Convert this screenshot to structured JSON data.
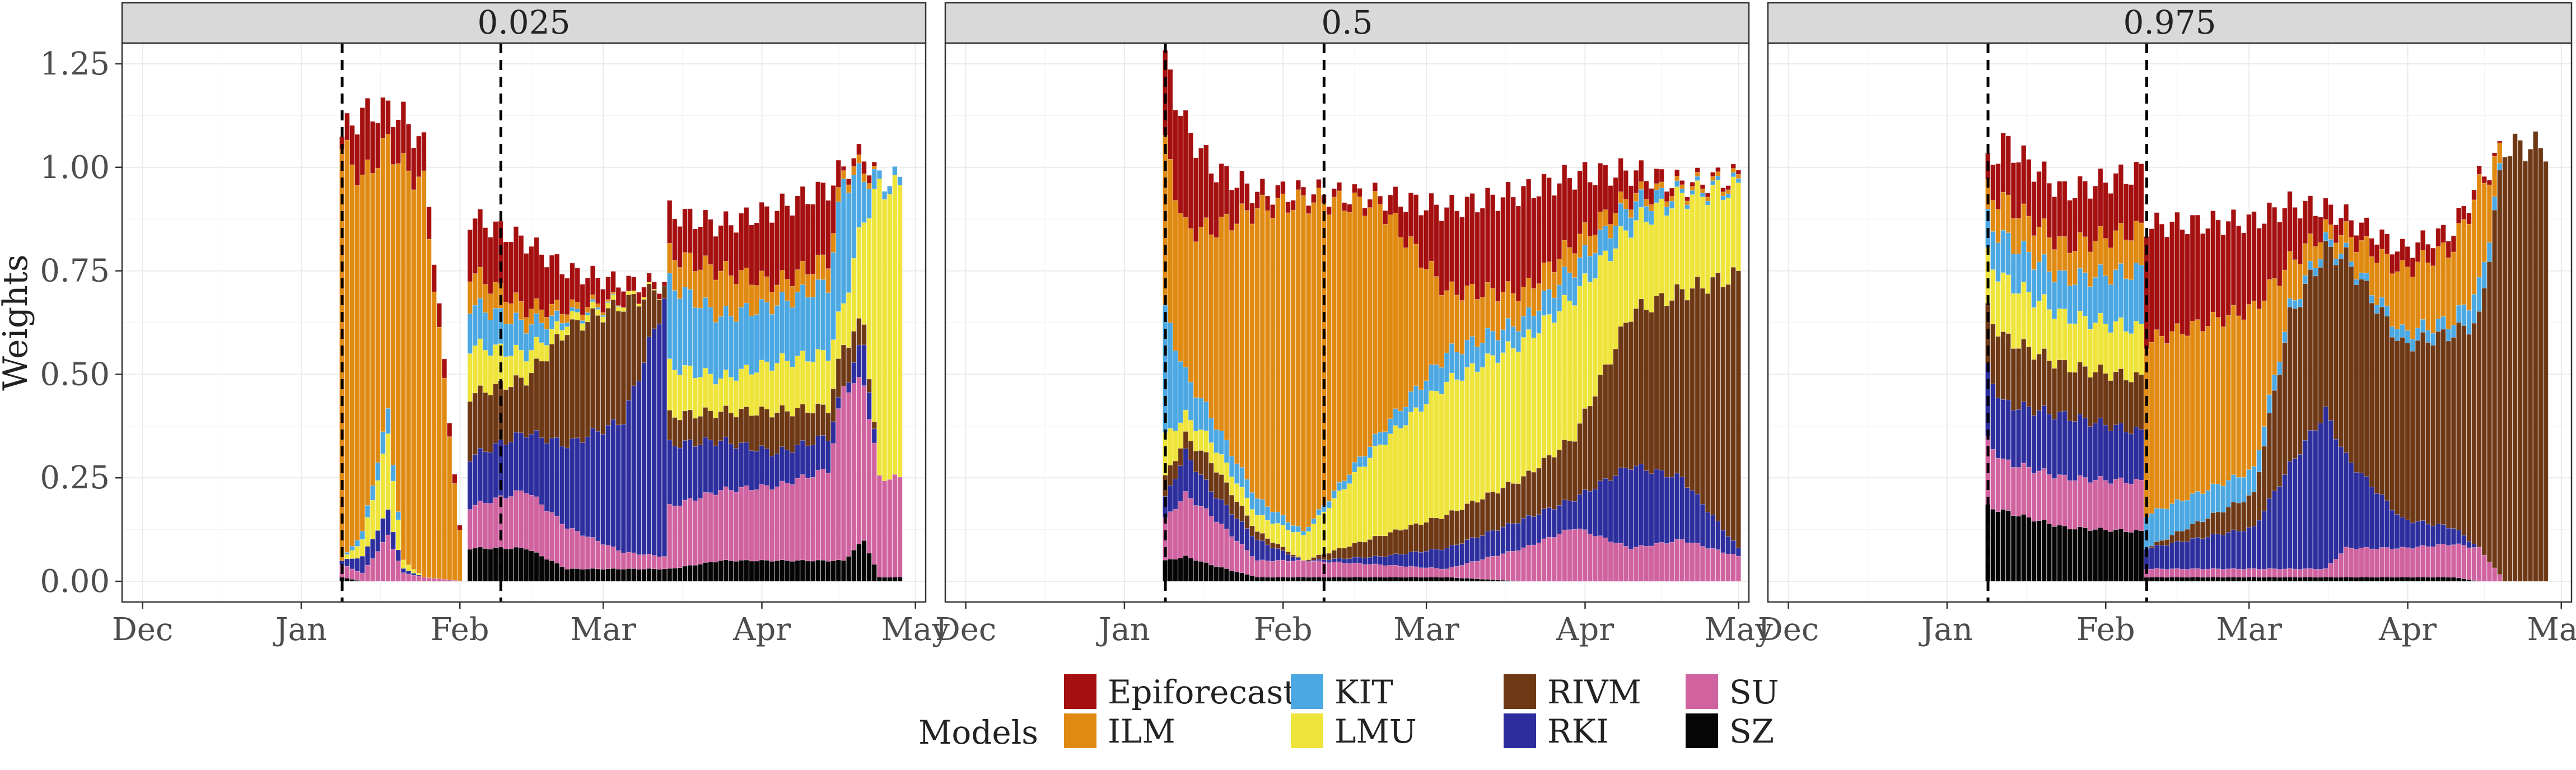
{
  "chart_data": {
    "type": "bar",
    "layout": "stacked",
    "ylabel": "Weights",
    "ylim": [
      -0.05,
      1.3
    ],
    "y_ticks": [
      "0.00",
      "0.25",
      "0.50",
      "0.75",
      "1.00",
      "1.25"
    ],
    "y_tick_values": [
      0,
      0.25,
      0.5,
      0.75,
      1.0,
      1.25
    ],
    "x_ticks": [
      "Dec",
      "Jan",
      "Feb",
      "Mar",
      "Apr",
      "May"
    ],
    "x_tick_dates": [
      "2021-12-01",
      "2022-01-01",
      "2022-02-01",
      "2022-03-01",
      "2022-04-01",
      "2022-05-01"
    ],
    "xlim": [
      "2021-11-27",
      "2022-05-03"
    ],
    "reference_lines_dates": [
      "2022-01-09",
      "2022-02-09"
    ],
    "grid": true,
    "legend_title": "Models",
    "legend_position": "bottom",
    "series": [
      {
        "name": "Epiforecasts",
        "color": "#A50F0F"
      },
      {
        "name": "ILM",
        "color": "#E08A12"
      },
      {
        "name": "KIT",
        "color": "#4BA8E3"
      },
      {
        "name": "LMU",
        "color": "#EEE43A"
      },
      {
        "name": "RIVM",
        "color": "#6E3815"
      },
      {
        "name": "RKI",
        "color": "#2D2E9E"
      },
      {
        "name": "SU",
        "color": "#D062A0"
      },
      {
        "name": "SZ",
        "color": "#050505"
      }
    ],
    "panels": [
      {
        "label": "0.025",
        "start": "2022-01-09",
        "end": "2022-04-28",
        "keyframes": [
          {
            "date": "2022-01-09",
            "values": [
              0.03,
              1.0,
              0.0,
              0.0,
              0.0,
              0.01,
              0.03,
              0.01
            ]
          },
          {
            "date": "2022-01-13",
            "values": [
              0.16,
              0.85,
              0.02,
              0.04,
              0.0,
              0.04,
              0.02,
              0.0
            ]
          },
          {
            "date": "2022-01-18",
            "values": [
              0.08,
              0.65,
              0.06,
              0.18,
              0.0,
              0.06,
              0.11,
              0.0
            ]
          },
          {
            "date": "2022-01-21",
            "values": [
              0.12,
              0.95,
              0.0,
              0.02,
              0.0,
              0.01,
              0.02,
              0.0
            ]
          },
          {
            "date": "2022-01-25",
            "values": [
              0.09,
              0.95,
              0.0,
              0.0,
              0.0,
              0.0,
              0.01,
              0.0
            ]
          },
          {
            "date": "2022-02-02",
            "values": [
              0.0,
              0.0,
              0.0,
              0.0,
              0.0,
              0.0,
              0.0,
              0.0
            ]
          },
          {
            "date": "2022-02-03",
            "values": [
              0.13,
              0.08,
              0.1,
              0.12,
              0.15,
              0.12,
              0.1,
              0.08
            ]
          },
          {
            "date": "2022-02-14",
            "values": [
              0.16,
              0.04,
              0.07,
              0.06,
              0.13,
              0.14,
              0.14,
              0.08
            ]
          },
          {
            "date": "2022-02-22",
            "values": [
              0.09,
              0.02,
              0.01,
              0.02,
              0.28,
              0.2,
              0.1,
              0.03
            ]
          },
          {
            "date": "2022-03-05",
            "values": [
              0.04,
              0.0,
              0.0,
              0.01,
              0.28,
              0.32,
              0.04,
              0.03
            ]
          },
          {
            "date": "2022-03-13",
            "values": [
              0.01,
              0.0,
              0.0,
              0.0,
              0.03,
              0.62,
              0.03,
              0.03
            ]
          },
          {
            "date": "2022-03-14",
            "values": [
              0.1,
              0.07,
              0.2,
              0.12,
              0.07,
              0.15,
              0.15,
              0.03
            ]
          },
          {
            "date": "2022-03-24",
            "values": [
              0.11,
              0.11,
              0.15,
              0.08,
              0.07,
              0.12,
              0.17,
              0.05
            ]
          },
          {
            "date": "2022-04-04",
            "values": [
              0.18,
              0.05,
              0.14,
              0.12,
              0.1,
              0.08,
              0.18,
              0.05
            ]
          },
          {
            "date": "2022-04-14",
            "values": [
              0.17,
              0.06,
              0.17,
              0.13,
              0.07,
              0.08,
              0.22,
              0.05
            ]
          },
          {
            "date": "2022-04-17",
            "values": [
              0.01,
              0.02,
              0.3,
              0.1,
              0.1,
              0.0,
              0.42,
              0.05
            ]
          },
          {
            "date": "2022-04-21",
            "values": [
              0.03,
              0.02,
              0.1,
              0.25,
              0.05,
              0.1,
              0.38,
              0.1
            ]
          },
          {
            "date": "2022-04-24",
            "values": [
              0.0,
              0.0,
              0.02,
              0.7,
              0.0,
              0.0,
              0.24,
              0.01
            ]
          },
          {
            "date": "2022-04-28",
            "values": [
              0.0,
              0.0,
              0.02,
              0.7,
              0.0,
              0.0,
              0.24,
              0.01
            ]
          }
        ]
      },
      {
        "label": "0.5",
        "start": "2022-01-09",
        "end": "2022-05-01",
        "keyframes": [
          {
            "date": "2022-01-09",
            "values": [
              0.2,
              0.4,
              0.3,
              0.1,
              0.05,
              0.05,
              0.1,
              0.05
            ]
          },
          {
            "date": "2022-01-13",
            "values": [
              0.25,
              0.35,
              0.1,
              0.05,
              0.04,
              0.1,
              0.15,
              0.06
            ]
          },
          {
            "date": "2022-01-18",
            "values": [
              0.15,
              0.45,
              0.06,
              0.05,
              0.07,
              0.06,
              0.12,
              0.04
            ]
          },
          {
            "date": "2022-01-27",
            "values": [
              0.04,
              0.7,
              0.04,
              0.04,
              0.02,
              0.05,
              0.04,
              0.01
            ]
          },
          {
            "date": "2022-02-05",
            "values": [
              0.02,
              0.8,
              0.01,
              0.06,
              0.0,
              0.0,
              0.04,
              0.01
            ]
          },
          {
            "date": "2022-02-20",
            "values": [
              0.02,
              0.55,
              0.03,
              0.22,
              0.05,
              0.02,
              0.03,
              0.01
            ]
          },
          {
            "date": "2022-03-05",
            "values": [
              0.2,
              0.15,
              0.07,
              0.32,
              0.08,
              0.05,
              0.02,
              0.01
            ]
          },
          {
            "date": "2022-03-20",
            "values": [
              0.24,
              0.07,
              0.05,
              0.33,
              0.1,
              0.07,
              0.08,
              0.0
            ]
          },
          {
            "date": "2022-03-30",
            "values": [
              0.16,
              0.06,
              0.07,
              0.34,
              0.15,
              0.07,
              0.13,
              0.0
            ]
          },
          {
            "date": "2022-04-10",
            "values": [
              0.06,
              0.02,
              0.05,
              0.21,
              0.37,
              0.2,
              0.08,
              0.0
            ]
          },
          {
            "date": "2022-04-20",
            "values": [
              0.01,
              0.01,
              0.01,
              0.23,
              0.45,
              0.15,
              0.1,
              0.0
            ]
          },
          {
            "date": "2022-05-01",
            "values": [
              0.01,
              0.01,
              0.01,
              0.21,
              0.66,
              0.02,
              0.06,
              0.0
            ]
          }
        ]
      },
      {
        "label": "0.975",
        "start": "2022-01-09",
        "end": "2022-04-28",
        "keyframes": [
          {
            "date": "2022-01-09",
            "values": [
              0.06,
              0.07,
              0.09,
              0.13,
              0.14,
              0.17,
              0.16,
              0.18
            ]
          },
          {
            "date": "2022-01-12",
            "values": [
              0.14,
              0.09,
              0.1,
              0.14,
              0.16,
              0.14,
              0.12,
              0.17
            ]
          },
          {
            "date": "2022-01-24",
            "values": [
              0.13,
              0.08,
              0.09,
              0.12,
              0.12,
              0.15,
              0.12,
              0.13
            ]
          },
          {
            "date": "2022-02-08",
            "values": [
              0.14,
              0.1,
              0.14,
              0.12,
              0.13,
              0.12,
              0.12,
              0.12
            ]
          },
          {
            "date": "2022-02-09",
            "values": [
              0.28,
              0.42,
              0.08,
              0.0,
              0.0,
              0.05,
              0.02,
              0.01
            ]
          },
          {
            "date": "2022-03-02",
            "values": [
              0.21,
              0.39,
              0.06,
              0.0,
              0.08,
              0.1,
              0.02,
              0.01
            ]
          },
          {
            "date": "2022-03-09",
            "values": [
              0.14,
              0.11,
              0.02,
              0.0,
              0.36,
              0.25,
              0.02,
              0.01
            ]
          },
          {
            "date": "2022-03-16",
            "values": [
              0.05,
              0.03,
              0.02,
              0.0,
              0.39,
              0.38,
              0.02,
              0.01
            ]
          },
          {
            "date": "2022-03-20",
            "values": [
              0.04,
              0.05,
              0.01,
              0.0,
              0.48,
              0.22,
              0.07,
              0.01
            ]
          },
          {
            "date": "2022-03-31",
            "values": [
              0.05,
              0.15,
              0.03,
              0.0,
              0.42,
              0.07,
              0.07,
              0.01
            ]
          },
          {
            "date": "2022-04-10",
            "values": [
              0.04,
              0.18,
              0.03,
              0.0,
              0.47,
              0.04,
              0.08,
              0.01
            ]
          },
          {
            "date": "2022-04-15",
            "values": [
              0.02,
              0.24,
              0.08,
              0.0,
              0.55,
              0.0,
              0.08,
              0.0
            ]
          },
          {
            "date": "2022-04-20",
            "values": [
              0.0,
              0.0,
              0.0,
              0.0,
              1.05,
              0.0,
              0.0,
              0.0
            ]
          },
          {
            "date": "2022-04-28",
            "values": [
              0.0,
              0.0,
              0.0,
              0.0,
              1.05,
              0.0,
              0.0,
              0.0
            ]
          }
        ]
      }
    ]
  }
}
